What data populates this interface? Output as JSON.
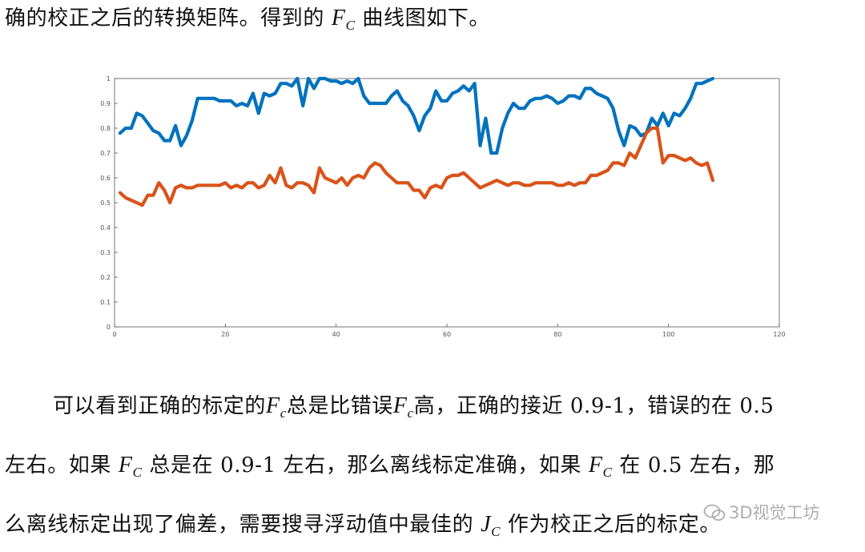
{
  "text": {
    "line1_before": "确的校正之后的转换矩阵。得到的 ",
    "line1_after": " 曲线图如下。",
    "p1_a": "可以看到正确的标定的",
    "p1_b": "总是比错误",
    "p1_c": "高，正确的接近 0.9-1，错误的在 0.5",
    "p2_a": "左右。如果 ",
    "p2_b": " 总是在 0.9-1 左右，那么离线标定准确，如果 ",
    "p2_c": " 在 0.5 左右，那",
    "p3_a": "么离线标定出现了偏差，需要搜寻浮动值中最佳的 ",
    "p3_b": " 作为校正之后的标定。"
  },
  "symbols": {
    "F": "F",
    "C": "C",
    "c": "c",
    "J": "J"
  },
  "watermark": "3D视觉工坊",
  "chart_data": {
    "type": "line",
    "xlim": [
      0,
      120
    ],
    "ylim": [
      0,
      1
    ],
    "xticks": [
      0,
      20,
      40,
      60,
      80,
      100,
      120
    ],
    "yticks": [
      0,
      0.1,
      0.2,
      0.3,
      0.4,
      0.5,
      0.6,
      0.7,
      0.8,
      0.9,
      1
    ],
    "grid": false,
    "series": [
      {
        "color": "#0072bd",
        "x": [
          1,
          2,
          3,
          4,
          5,
          6,
          7,
          8,
          9,
          10,
          11,
          12,
          13,
          14,
          15,
          16,
          17,
          18,
          19,
          20,
          21,
          22,
          23,
          24,
          25,
          26,
          27,
          28,
          29,
          30,
          31,
          32,
          33,
          34,
          35,
          36,
          37,
          38,
          39,
          40,
          41,
          42,
          43,
          44,
          45,
          46,
          47,
          48,
          49,
          50,
          51,
          52,
          53,
          54,
          55,
          56,
          57,
          58,
          59,
          60,
          61,
          62,
          63,
          64,
          65,
          66,
          67,
          68,
          69,
          70,
          71,
          72,
          73,
          74,
          75,
          76,
          77,
          78,
          79,
          80,
          81,
          82,
          83,
          84,
          85,
          86,
          87,
          88,
          89,
          90,
          91,
          92,
          93,
          94,
          95,
          96,
          97,
          98,
          99,
          100,
          101,
          102,
          103,
          104,
          105,
          106,
          107,
          108
        ],
        "y": [
          0.78,
          0.8,
          0.8,
          0.86,
          0.85,
          0.82,
          0.79,
          0.78,
          0.75,
          0.75,
          0.81,
          0.73,
          0.77,
          0.83,
          0.92,
          0.92,
          0.92,
          0.92,
          0.91,
          0.91,
          0.91,
          0.89,
          0.9,
          0.89,
          0.94,
          0.86,
          0.94,
          0.93,
          0.94,
          0.98,
          0.98,
          0.97,
          1.0,
          0.89,
          1.0,
          0.96,
          1.0,
          1.0,
          0.99,
          0.99,
          0.98,
          0.99,
          0.98,
          1.0,
          0.93,
          0.9,
          0.9,
          0.9,
          0.9,
          0.93,
          0.95,
          0.91,
          0.89,
          0.85,
          0.79,
          0.85,
          0.88,
          0.95,
          0.91,
          0.91,
          0.94,
          0.95,
          0.97,
          0.95,
          0.98,
          0.73,
          0.84,
          0.7,
          0.7,
          0.8,
          0.86,
          0.9,
          0.88,
          0.88,
          0.91,
          0.92,
          0.92,
          0.93,
          0.92,
          0.9,
          0.91,
          0.93,
          0.93,
          0.92,
          0.96,
          0.96,
          0.94,
          0.93,
          0.92,
          0.88,
          0.79,
          0.73,
          0.81,
          0.8,
          0.77,
          0.78,
          0.84,
          0.81,
          0.86,
          0.81,
          0.86,
          0.85,
          0.88,
          0.92,
          0.98,
          0.98,
          0.99,
          1.0
        ]
      },
      {
        "color": "#d95319",
        "x": [
          1,
          2,
          3,
          4,
          5,
          6,
          7,
          8,
          9,
          10,
          11,
          12,
          13,
          14,
          15,
          16,
          17,
          18,
          19,
          20,
          21,
          22,
          23,
          24,
          25,
          26,
          27,
          28,
          29,
          30,
          31,
          32,
          33,
          34,
          35,
          36,
          37,
          38,
          39,
          40,
          41,
          42,
          43,
          44,
          45,
          46,
          47,
          48,
          49,
          50,
          51,
          52,
          53,
          54,
          55,
          56,
          57,
          58,
          59,
          60,
          61,
          62,
          63,
          64,
          65,
          66,
          67,
          68,
          69,
          70,
          71,
          72,
          73,
          74,
          75,
          76,
          77,
          78,
          79,
          80,
          81,
          82,
          83,
          84,
          85,
          86,
          87,
          88,
          89,
          90,
          91,
          92,
          93,
          94,
          95,
          96,
          97,
          98,
          99,
          100,
          101,
          102,
          103,
          104,
          105,
          106,
          107,
          108
        ],
        "y": [
          0.54,
          0.52,
          0.51,
          0.5,
          0.49,
          0.53,
          0.53,
          0.58,
          0.55,
          0.5,
          0.56,
          0.57,
          0.56,
          0.56,
          0.57,
          0.57,
          0.57,
          0.57,
          0.57,
          0.58,
          0.56,
          0.57,
          0.56,
          0.58,
          0.58,
          0.56,
          0.57,
          0.61,
          0.58,
          0.64,
          0.57,
          0.56,
          0.58,
          0.58,
          0.57,
          0.54,
          0.64,
          0.6,
          0.59,
          0.58,
          0.6,
          0.57,
          0.6,
          0.61,
          0.6,
          0.64,
          0.66,
          0.65,
          0.62,
          0.6,
          0.58,
          0.58,
          0.58,
          0.55,
          0.55,
          0.52,
          0.56,
          0.57,
          0.56,
          0.6,
          0.61,
          0.61,
          0.62,
          0.6,
          0.58,
          0.56,
          0.57,
          0.58,
          0.59,
          0.58,
          0.57,
          0.58,
          0.58,
          0.57,
          0.57,
          0.58,
          0.58,
          0.58,
          0.58,
          0.57,
          0.57,
          0.58,
          0.57,
          0.58,
          0.58,
          0.61,
          0.61,
          0.62,
          0.63,
          0.66,
          0.66,
          0.65,
          0.7,
          0.68,
          0.73,
          0.78,
          0.8,
          0.8,
          0.66,
          0.69,
          0.69,
          0.68,
          0.67,
          0.68,
          0.66,
          0.65,
          0.66,
          0.59
        ]
      }
    ]
  }
}
